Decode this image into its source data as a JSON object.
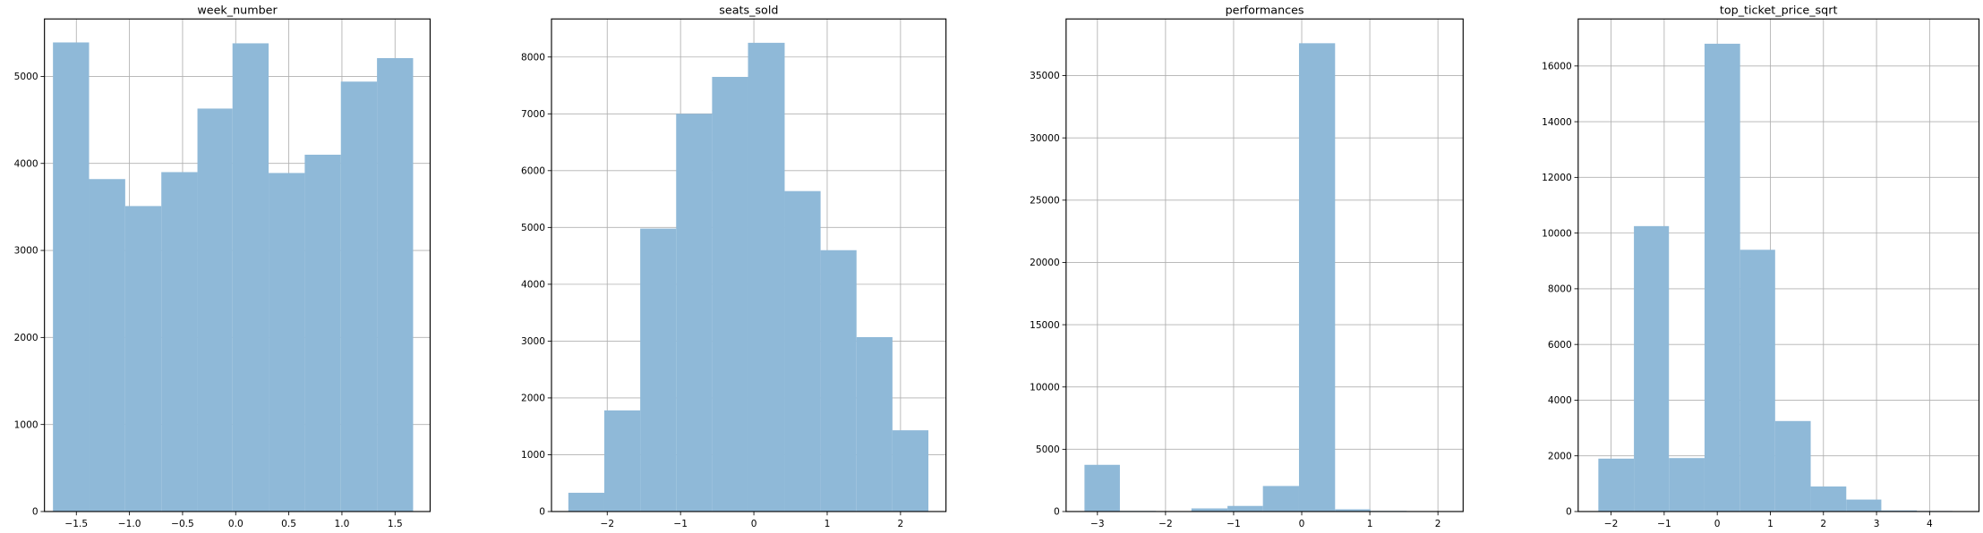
{
  "chart_data": [
    {
      "type": "histogram",
      "title": "week_number",
      "color": "#8fb9d8",
      "grid": true,
      "bins": [
        -1.72,
        -1.38,
        -1.04,
        -0.7,
        -0.36,
        -0.03,
        0.31,
        0.65,
        0.99,
        1.33,
        1.67
      ],
      "values": [
        5390,
        3820,
        3510,
        3900,
        4630,
        5380,
        3890,
        4100,
        4940,
        5210
      ],
      "xlim": [
        -1.8,
        1.83
      ],
      "ylim": [
        0,
        5660
      ],
      "xticks": [
        {
          "value": -1.5,
          "label": "−1.5"
        },
        {
          "value": -1.0,
          "label": "−1.0"
        },
        {
          "value": -0.5,
          "label": "−0.5"
        },
        {
          "value": 0,
          "label": "0.0"
        },
        {
          "value": 0.5,
          "label": "0.5"
        },
        {
          "value": 1.0,
          "label": "1.0"
        },
        {
          "value": 1.5,
          "label": "1.5"
        }
      ],
      "yticks": [
        0,
        1000,
        2000,
        3000,
        4000,
        5000
      ]
    },
    {
      "type": "histogram",
      "title": "seats_sold",
      "color": "#8fb9d8",
      "grid": true,
      "bins": [
        -2.53,
        -2.04,
        -1.55,
        -1.06,
        -0.57,
        -0.08,
        0.42,
        0.91,
        1.4,
        1.89,
        2.38
      ],
      "values": [
        330,
        1780,
        4980,
        7000,
        7650,
        8250,
        5640,
        4600,
        3070,
        1430
      ],
      "xlim": [
        -2.76,
        2.62
      ],
      "ylim": [
        0,
        8670
      ],
      "xticks": [
        {
          "value": -2,
          "label": "−2"
        },
        {
          "value": -1,
          "label": "−1"
        },
        0,
        1,
        2
      ],
      "yticks": [
        0,
        1000,
        2000,
        3000,
        4000,
        5000,
        6000,
        7000,
        8000
      ]
    },
    {
      "type": "histogram",
      "title": "performances",
      "color": "#8fb9d8",
      "grid": true,
      "bins": [
        -3.19,
        -2.67,
        -2.14,
        -1.62,
        -1.09,
        -0.57,
        -0.04,
        0.49,
        1.01,
        1.54,
        2.06
      ],
      "values": [
        3750,
        50,
        0,
        250,
        450,
        2050,
        37600,
        180,
        50,
        30
      ],
      "xlim": [
        -3.46,
        2.37
      ],
      "ylim": [
        0,
        39550
      ],
      "xticks": [
        {
          "value": -3,
          "label": "−3"
        },
        {
          "value": -2,
          "label": "−2"
        },
        {
          "value": -1,
          "label": "−1"
        },
        0,
        1,
        2
      ],
      "yticks": [
        0,
        5000,
        10000,
        15000,
        20000,
        25000,
        30000,
        35000
      ]
    },
    {
      "type": "histogram",
      "title": "top_ticket_price_sqrt",
      "color": "#8fb9d8",
      "grid": true,
      "bins": [
        -2.24,
        -1.57,
        -0.91,
        -0.24,
        0.43,
        1.09,
        1.76,
        2.43,
        3.09,
        3.76,
        4.43
      ],
      "values": [
        1900,
        10250,
        1920,
        16800,
        9400,
        3250,
        900,
        430,
        40,
        20
      ],
      "xlim": [
        -2.62,
        4.93
      ],
      "ylim": [
        0,
        17690
      ],
      "xticks": [
        {
          "value": -2,
          "label": "−2"
        },
        {
          "value": -1,
          "label": "−1"
        },
        0,
        1,
        2,
        3,
        4
      ],
      "yticks": [
        0,
        2000,
        4000,
        6000,
        8000,
        10000,
        12000,
        14000,
        16000
      ]
    }
  ]
}
